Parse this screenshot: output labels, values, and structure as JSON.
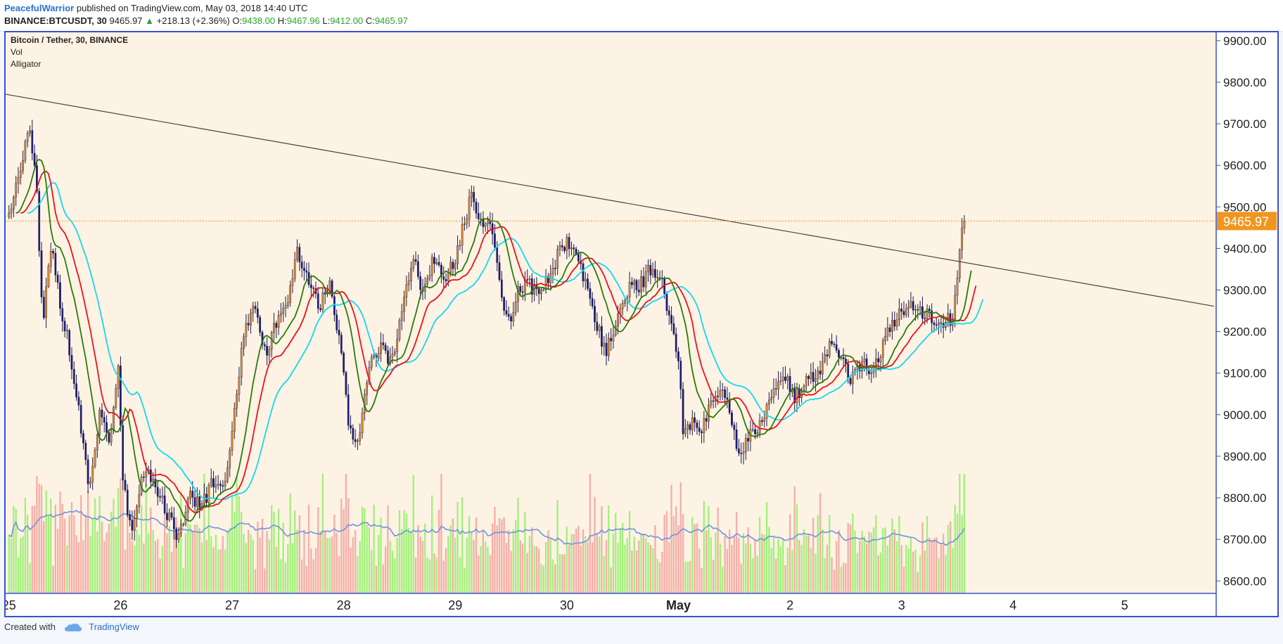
{
  "header": {
    "author": "PeacefulWarrior",
    "published_text": "published on TradingView.com, May 03, 2018 14:40 UTC",
    "symbol": "BINANCE:BTCUSDT, 30",
    "last": "9465.97",
    "change_arrow": "▲",
    "change": "+218.13 (+2.36%)",
    "open_label": "O:",
    "open": "9438.00",
    "high_label": "H:",
    "high": "9467.96",
    "low_label": "L:",
    "low": "9412.00",
    "close_label": "C:",
    "close": "9465.97"
  },
  "legend": {
    "title": "Bitcoin / Tether, 30, BINANCE",
    "vol": "Vol",
    "alligator": "Alligator"
  },
  "footer": {
    "created_with": "Created with",
    "brand": "TradingView"
  },
  "colors": {
    "background": "#fdf3e4",
    "bull_candle": "#e08a2a",
    "bear_candle": "#1c1a7a",
    "jaw": "#14d8f2",
    "teeth": "#e8121c",
    "lips": "#2b7a0b",
    "vol_up": "#98f06e",
    "vol_down": "#f4a6a0",
    "vol_ma": "#6f93e0",
    "price_line": "#f0961e",
    "trendline": "#444444",
    "axis_border": "#3b4fd1"
  },
  "chart_data": {
    "type": "candlestick",
    "symbol": "BINANCE:BTCUSDT",
    "interval": "30",
    "x_labels": [
      "25",
      "26",
      "27",
      "28",
      "29",
      "30",
      "May",
      "2",
      "3",
      "4",
      "5"
    ],
    "x_label_days": [
      0,
      1,
      2,
      3,
      4,
      5,
      6,
      7,
      8,
      9,
      10
    ],
    "y_ticks": [
      "9900.00",
      "9800.00",
      "9700.00",
      "9600.00",
      "9500.00",
      "9400.00",
      "9300.00",
      "9200.00",
      "9100.00",
      "9000.00",
      "8900.00",
      "8800.00",
      "8700.00",
      "8600.00"
    ],
    "ylim": [
      8570,
      9920
    ],
    "xlim_days": [
      -0.03,
      10.82
    ],
    "last_price": "9465.97",
    "anchor_prices": [
      [
        0.0,
        9480
      ],
      [
        0.08,
        9560
      ],
      [
        0.18,
        9680
      ],
      [
        0.25,
        9550
      ],
      [
        0.3,
        9210
      ],
      [
        0.38,
        9420
      ],
      [
        0.45,
        9280
      ],
      [
        0.55,
        9150
      ],
      [
        0.65,
        8960
      ],
      [
        0.72,
        8820
      ],
      [
        0.82,
        9020
      ],
      [
        0.9,
        8940
      ],
      [
        0.98,
        9120
      ],
      [
        1.02,
        8840
      ],
      [
        1.1,
        8720
      ],
      [
        1.2,
        8870
      ],
      [
        1.32,
        8830
      ],
      [
        1.42,
        8760
      ],
      [
        1.52,
        8700
      ],
      [
        1.62,
        8820
      ],
      [
        1.72,
        8770
      ],
      [
        1.82,
        8840
      ],
      [
        1.92,
        8810
      ],
      [
        2.0,
        8950
      ],
      [
        2.1,
        9180
      ],
      [
        2.2,
        9270
      ],
      [
        2.3,
        9150
      ],
      [
        2.4,
        9220
      ],
      [
        2.5,
        9260
      ],
      [
        2.58,
        9400
      ],
      [
        2.68,
        9320
      ],
      [
        2.78,
        9260
      ],
      [
        2.88,
        9310
      ],
      [
        2.98,
        9140
      ],
      [
        3.05,
        8960
      ],
      [
        3.12,
        8920
      ],
      [
        3.22,
        9100
      ],
      [
        3.32,
        9170
      ],
      [
        3.42,
        9120
      ],
      [
        3.55,
        9280
      ],
      [
        3.62,
        9390
      ],
      [
        3.7,
        9300
      ],
      [
        3.8,
        9370
      ],
      [
        3.9,
        9330
      ],
      [
        4.0,
        9370
      ],
      [
        4.08,
        9460
      ],
      [
        4.15,
        9540
      ],
      [
        4.25,
        9440
      ],
      [
        4.32,
        9470
      ],
      [
        4.4,
        9310
      ],
      [
        4.48,
        9220
      ],
      [
        4.55,
        9290
      ],
      [
        4.65,
        9320
      ],
      [
        4.75,
        9280
      ],
      [
        4.85,
        9340
      ],
      [
        4.95,
        9400
      ],
      [
        5.05,
        9420
      ],
      [
        5.12,
        9360
      ],
      [
        5.2,
        9280
      ],
      [
        5.28,
        9210
      ],
      [
        5.35,
        9150
      ],
      [
        5.45,
        9230
      ],
      [
        5.55,
        9300
      ],
      [
        5.65,
        9310
      ],
      [
        5.75,
        9350
      ],
      [
        5.85,
        9320
      ],
      [
        5.92,
        9230
      ],
      [
        6.0,
        9120
      ],
      [
        6.05,
        8940
      ],
      [
        6.12,
        8990
      ],
      [
        6.2,
        8960
      ],
      [
        6.3,
        9030
      ],
      [
        6.4,
        9060
      ],
      [
        6.48,
        8980
      ],
      [
        6.55,
        8900
      ],
      [
        6.65,
        8950
      ],
      [
        6.75,
        8990
      ],
      [
        6.85,
        9060
      ],
      [
        6.95,
        9100
      ],
      [
        7.05,
        9040
      ],
      [
        7.15,
        9080
      ],
      [
        7.25,
        9100
      ],
      [
        7.35,
        9160
      ],
      [
        7.45,
        9140
      ],
      [
        7.55,
        9080
      ],
      [
        7.65,
        9120
      ],
      [
        7.75,
        9110
      ],
      [
        7.85,
        9180
      ],
      [
        7.95,
        9230
      ],
      [
        8.05,
        9260
      ],
      [
        8.15,
        9250
      ],
      [
        8.25,
        9240
      ],
      [
        8.32,
        9210
      ],
      [
        8.4,
        9230
      ],
      [
        8.45,
        9220
      ],
      [
        8.5,
        9330
      ],
      [
        8.54,
        9460
      ],
      [
        8.58,
        9466
      ]
    ],
    "trendline": {
      "from": {
        "day": -0.03,
        "price": 9771
      },
      "to": {
        "day": 10.8,
        "price": 9261
      }
    },
    "series": [
      {
        "name": "Alligator Jaw",
        "color": "#14d8f2"
      },
      {
        "name": "Alligator Teeth",
        "color": "#e8121c"
      },
      {
        "name": "Alligator Lips",
        "color": "#2b7a0b"
      },
      {
        "name": "Vol",
        "color": "#98f06e"
      }
    ]
  }
}
